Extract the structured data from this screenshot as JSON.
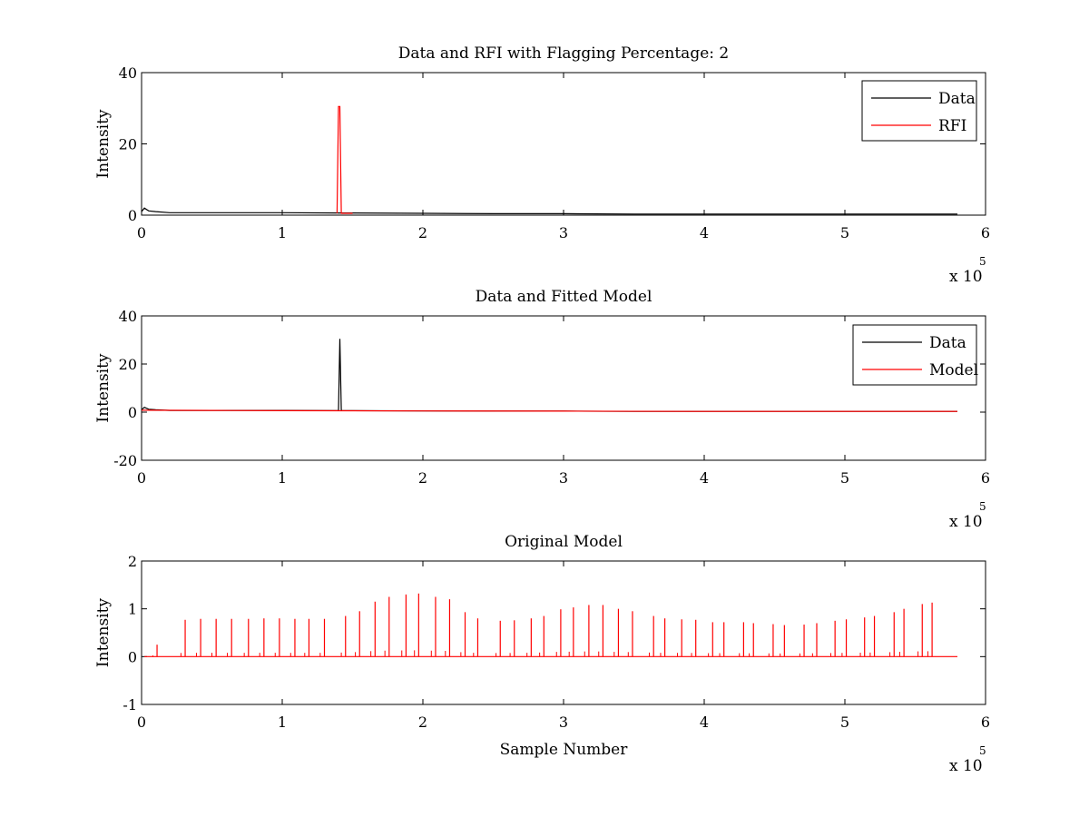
{
  "chart_data": [
    {
      "type": "line",
      "title": "Data and RFI with Flagging Percentage: 2",
      "xlabel": "",
      "ylabel": "Intensity",
      "xlim": [
        0,
        6
      ],
      "ylim": [
        0,
        40
      ],
      "xticks": [
        "0",
        "1",
        "2",
        "3",
        "4",
        "5",
        "6"
      ],
      "yticks": [
        "0",
        "20",
        "40"
      ],
      "x_multiplier": {
        "base": "x 10",
        "exponent": "5"
      },
      "grid": false,
      "legend_position": "top-right",
      "series": [
        {
          "name": "Data",
          "color": "#000000",
          "x": [
            0,
            0.02,
            0.05,
            0.1,
            0.2,
            0.5,
            1.0,
            1.4,
            1.5,
            2.0,
            2.5,
            3.0,
            3.5,
            4.0,
            4.5,
            5.0,
            5.5,
            5.8
          ],
          "y": [
            1.0,
            2.0,
            1.2,
            1.0,
            0.7,
            0.7,
            0.7,
            0.6,
            0.6,
            0.5,
            0.4,
            0.4,
            0.3,
            0.3,
            0.3,
            0.3,
            0.3,
            0.3
          ]
        },
        {
          "name": "RFI",
          "color": "#ff0000",
          "x": [
            1.39,
            1.4,
            1.41,
            1.42,
            1.5
          ],
          "y": [
            0.5,
            30.5,
            30.5,
            0.5,
            0.5
          ]
        }
      ]
    },
    {
      "type": "line",
      "title": "Data and Fitted Model",
      "xlabel": "",
      "ylabel": "Intensity",
      "xlim": [
        0,
        6
      ],
      "ylim": [
        -20,
        40
      ],
      "xticks": [
        "0",
        "1",
        "2",
        "3",
        "4",
        "5",
        "6"
      ],
      "yticks": [
        "-20",
        "0",
        "20",
        "40"
      ],
      "x_multiplier": {
        "base": "x 10",
        "exponent": "5"
      },
      "grid": false,
      "legend_position": "top-right",
      "series": [
        {
          "name": "Data",
          "color": "#000000",
          "x": [
            0,
            0.02,
            0.05,
            0.1,
            0.2,
            0.5,
            1.0,
            1.4,
            1.41,
            1.42,
            1.5,
            2.0,
            2.5,
            3.0,
            3.5,
            4.0,
            4.5,
            5.0,
            5.5,
            5.8
          ],
          "y": [
            1.0,
            2.0,
            1.2,
            1.0,
            0.7,
            0.7,
            0.7,
            0.6,
            30.5,
            0.6,
            0.6,
            0.5,
            0.4,
            0.4,
            0.3,
            0.3,
            0.3,
            0.3,
            0.3,
            0.3
          ]
        },
        {
          "name": "Model",
          "color": "#ff0000",
          "x": [
            0,
            0.5,
            1.0,
            2.0,
            3.0,
            4.0,
            5.0,
            5.8
          ],
          "y": [
            0.8,
            0.7,
            0.6,
            0.5,
            0.4,
            0.3,
            0.3,
            0.3
          ]
        }
      ]
    },
    {
      "type": "line",
      "title": "Original Model",
      "xlabel": "Sample Number",
      "ylabel": "Intensity",
      "xlim": [
        0,
        6
      ],
      "ylim": [
        -1,
        2
      ],
      "xticks": [
        "0",
        "1",
        "2",
        "3",
        "4",
        "5",
        "6"
      ],
      "yticks": [
        "-1",
        "0",
        "1",
        "2"
      ],
      "x_multiplier": {
        "base": "x 10",
        "exponent": "5"
      },
      "grid": false,
      "series": [
        {
          "color": "#ff0000",
          "x": [
            0.11,
            0.31,
            0.42,
            0.53,
            0.64,
            0.76,
            0.87,
            0.98,
            1.09,
            1.19,
            1.3,
            1.45,
            1.55,
            1.66,
            1.76,
            1.88,
            1.97,
            2.09,
            2.19,
            2.3,
            2.39,
            2.55,
            2.65,
            2.77,
            2.86,
            2.98,
            3.07,
            3.18,
            3.28,
            3.39,
            3.49,
            3.64,
            3.72,
            3.84,
            3.94,
            4.06,
            4.14,
            4.28,
            4.35,
            4.49,
            4.57,
            4.71,
            4.8,
            4.93,
            5.01,
            5.14,
            5.21,
            5.35,
            5.42,
            5.55,
            5.62
          ],
          "y": [
            0.25,
            0.77,
            0.79,
            0.79,
            0.79,
            0.79,
            0.8,
            0.8,
            0.79,
            0.79,
            0.79,
            0.85,
            0.95,
            1.15,
            1.25,
            1.3,
            1.32,
            1.25,
            1.2,
            0.93,
            0.8,
            0.75,
            0.76,
            0.8,
            0.85,
            0.99,
            1.03,
            1.08,
            1.08,
            1.0,
            0.95,
            0.85,
            0.8,
            0.78,
            0.77,
            0.72,
            0.72,
            0.72,
            0.7,
            0.68,
            0.66,
            0.67,
            0.7,
            0.75,
            0.78,
            0.82,
            0.85,
            0.93,
            1.0,
            1.1,
            1.13
          ]
        }
      ]
    }
  ]
}
